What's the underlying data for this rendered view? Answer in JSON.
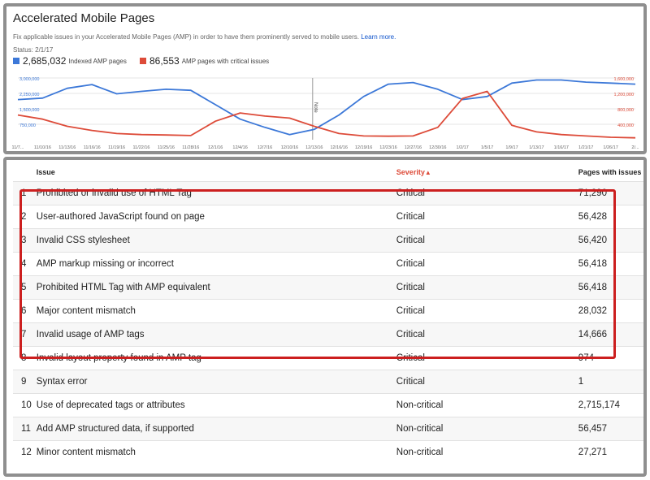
{
  "header": {
    "title": "Accelerated Mobile Pages",
    "description": "Fix applicable issues in your Accelerated Mobile Pages (AMP) in order to have them prominently served to mobile users.",
    "learn_more": "Learn more.",
    "status": "Status: 2/1/17"
  },
  "legend": {
    "indexed": {
      "value": "2,685,032",
      "label": "Indexed AMP pages",
      "color": "#3c78d8"
    },
    "critical": {
      "value": "86,553",
      "label": "AMP pages with critical issues",
      "color": "#dd4b39"
    }
  },
  "chart_data": {
    "type": "line",
    "x": [
      "11/7/16",
      "11/10/16",
      "11/13/16",
      "11/16/16",
      "11/19/16",
      "11/22/16",
      "11/25/16",
      "11/28/16",
      "12/1/16",
      "12/4/16",
      "12/7/16",
      "12/10/16",
      "12/13/16",
      "12/16/16",
      "12/19/16",
      "12/23/16",
      "12/27/16",
      "12/30/16",
      "1/2/17",
      "1/5/17",
      "1/9/17",
      "1/13/17",
      "1/16/17",
      "1/21/17",
      "1/26/17",
      "2/1/17"
    ],
    "tick_labels": [
      "11/7...",
      "11/10/16",
      "11/13/16",
      "11/16/16",
      "11/19/16",
      "11/22/16",
      "11/25/16",
      "11/28/16",
      "12/1/16",
      "12/4/16",
      "12/7/16",
      "12/10/16",
      "12/13/16",
      "12/16/16",
      "12/19/16",
      "12/23/16",
      "12/27/16",
      "12/30/16",
      "1/2/17",
      "1/5/17",
      "1/9/17",
      "1/13/17",
      "1/16/17",
      "1/21/17",
      "1/26/17",
      "2/..."
    ],
    "left_axis": {
      "ticks": [
        "3,000,000",
        "2,250,000",
        "1,500,000",
        "750,000"
      ],
      "ylim": [
        0,
        3000000
      ]
    },
    "right_axis": {
      "ticks": [
        "1,600,000",
        "1,200,000",
        "800,000",
        "400,000"
      ],
      "ylim": [
        0,
        1600000
      ]
    },
    "annotation": "Note",
    "series": [
      {
        "name": "Indexed AMP pages",
        "color": "#3c78d8",
        "axis": "left",
        "values": [
          1950000,
          2020000,
          2500000,
          2680000,
          2230000,
          2350000,
          2450000,
          2400000,
          1700000,
          1000000,
          600000,
          250000,
          500000,
          1200000,
          2100000,
          2700000,
          2780000,
          2450000,
          1950000,
          2100000,
          2750000,
          2900000,
          2900000,
          2800000,
          2750000,
          2700000
        ]
      },
      {
        "name": "AMP pages with critical issues",
        "color": "#dd4b39",
        "axis": "left",
        "values": [
          1200000,
          1000000,
          650000,
          450000,
          300000,
          250000,
          230000,
          200000,
          900000,
          1300000,
          1150000,
          1050000,
          650000,
          300000,
          180000,
          170000,
          180000,
          600000,
          2000000,
          2350000,
          700000,
          380000,
          250000,
          180000,
          120000,
          90000
        ]
      }
    ]
  },
  "table": {
    "headers": {
      "num": "",
      "issue": "Issue",
      "severity": "Severity",
      "sort_arrow": "▲",
      "pages": "Pages with issues"
    },
    "rows": [
      {
        "num": "1",
        "issue": "Prohibited or invalid use of HTML Tag",
        "severity": "Critical",
        "pages": "71,290"
      },
      {
        "num": "2",
        "issue": "User-authored JavaScript found on page",
        "severity": "Critical",
        "pages": "56,428"
      },
      {
        "num": "3",
        "issue": "Invalid CSS stylesheet",
        "severity": "Critical",
        "pages": "56,420"
      },
      {
        "num": "4",
        "issue": "AMP markup missing or incorrect",
        "severity": "Critical",
        "pages": "56,418"
      },
      {
        "num": "5",
        "issue": "Prohibited HTML Tag with AMP equivalent",
        "severity": "Critical",
        "pages": "56,418"
      },
      {
        "num": "6",
        "issue": "Major content mismatch",
        "severity": "Critical",
        "pages": "28,032"
      },
      {
        "num": "7",
        "issue": "Invalid usage of AMP tags",
        "severity": "Critical",
        "pages": "14,666"
      },
      {
        "num": "8",
        "issue": "Invalid layout property found in AMP tag",
        "severity": "Critical",
        "pages": "974"
      },
      {
        "num": "9",
        "issue": "Syntax error",
        "severity": "Critical",
        "pages": "1"
      },
      {
        "num": "10",
        "issue": "Use of deprecated tags or attributes",
        "severity": "Non-critical",
        "pages": "2,715,174"
      },
      {
        "num": "11",
        "issue": "Add AMP structured data, if supported",
        "severity": "Non-critical",
        "pages": "56,457"
      },
      {
        "num": "12",
        "issue": "Minor content mismatch",
        "severity": "Non-critical",
        "pages": "27,271"
      }
    ]
  },
  "highlight_color": "#cc1f1f"
}
